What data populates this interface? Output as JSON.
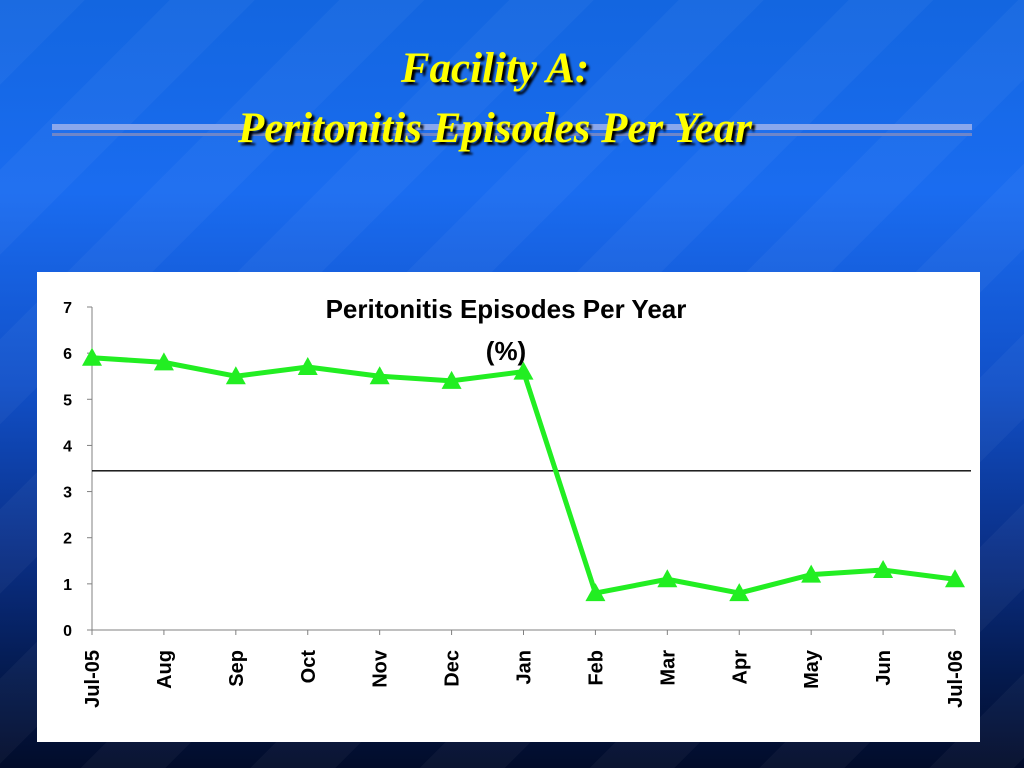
{
  "slide": {
    "title_line1": "Facility A:",
    "title_line2": "Peritonitis Episodes Per Year"
  },
  "colors": {
    "title": "#ffff00",
    "series": "#22ee22",
    "reference_line": "#000000"
  },
  "chart_data": {
    "type": "line",
    "title_lines": [
      "Peritonitis Episodes Per Year",
      "(%)"
    ],
    "categories": [
      "Jul-05",
      "Aug",
      "Sep",
      "Oct",
      "Nov",
      "Dec",
      "Jan",
      "Feb",
      "Mar",
      "Apr",
      "May",
      "Jun",
      "Jul-06"
    ],
    "series": [
      {
        "values": [
          5.9,
          5.8,
          5.5,
          5.7,
          5.5,
          5.4,
          5.6,
          0.8,
          1.1,
          0.8,
          1.2,
          1.3,
          1.1
        ],
        "marker": "triangle"
      }
    ],
    "reference_line": 3.45,
    "ylim": [
      0,
      7
    ],
    "yticks": [
      "0",
      "1",
      "2",
      "3",
      "4",
      "5",
      "6",
      "7"
    ],
    "grid": false,
    "legend": "none"
  }
}
